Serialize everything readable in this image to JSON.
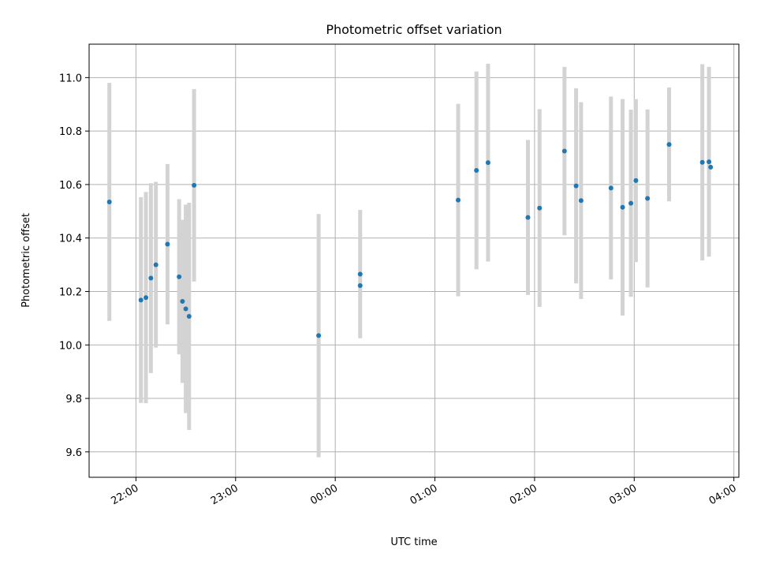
{
  "chart_data": {
    "type": "scatter",
    "title": "Photometric offset variation",
    "xlabel": "UTC time",
    "ylabel": "Photometric offset",
    "x_tick_labels": [
      "22:00",
      "23:00",
      "00:00",
      "01:00",
      "02:00",
      "03:00",
      "04:00"
    ],
    "x_tick_hours": [
      22,
      23,
      24,
      25,
      26,
      27,
      28
    ],
    "y_ticks": [
      9.6,
      9.8,
      10.0,
      10.2,
      10.4,
      10.6,
      10.8,
      11.0
    ],
    "xlim_hours": [
      21.53,
      28.05
    ],
    "ylim": [
      9.505,
      11.125
    ],
    "grid": true,
    "point_color": "#1f77b4",
    "errorbar_color": "#d3d3d3",
    "points": [
      {
        "t": "21:44",
        "y": 10.535,
        "err": 0.445
      },
      {
        "t": "22:03",
        "y": 10.168,
        "err": 0.385
      },
      {
        "t": "22:06",
        "y": 10.177,
        "err": 0.395
      },
      {
        "t": "22:09",
        "y": 10.25,
        "err": 0.355
      },
      {
        "t": "22:12",
        "y": 10.3,
        "err": 0.31
      },
      {
        "t": "22:19",
        "y": 10.377,
        "err": 0.3
      },
      {
        "t": "22:26",
        "y": 10.255,
        "err": 0.29
      },
      {
        "t": "22:28",
        "y": 10.163,
        "err": 0.305
      },
      {
        "t": "22:30",
        "y": 10.135,
        "err": 0.39
      },
      {
        "t": "22:32",
        "y": 10.107,
        "err": 0.425
      },
      {
        "t": "22:35",
        "y": 10.597,
        "err": 0.36
      },
      {
        "t": "23:50",
        "y": 10.035,
        "err": 0.455
      },
      {
        "t": "00:15",
        "y": 10.265,
        "err": 0.24
      },
      {
        "t": "00:15",
        "y": 10.222,
        "err": 0.0
      },
      {
        "t": "01:14",
        "y": 10.542,
        "err": 0.36
      },
      {
        "t": "01:25",
        "y": 10.653,
        "err": 0.37
      },
      {
        "t": "01:32",
        "y": 10.682,
        "err": 0.37
      },
      {
        "t": "01:56",
        "y": 10.477,
        "err": 0.29
      },
      {
        "t": "02:03",
        "y": 10.512,
        "err": 0.37
      },
      {
        "t": "02:18",
        "y": 10.725,
        "err": 0.315
      },
      {
        "t": "02:25",
        "y": 10.595,
        "err": 0.365
      },
      {
        "t": "02:28",
        "y": 10.54,
        "err": 0.368
      },
      {
        "t": "02:46",
        "y": 10.587,
        "err": 0.342
      },
      {
        "t": "02:53",
        "y": 10.515,
        "err": 0.405
      },
      {
        "t": "02:58",
        "y": 10.53,
        "err": 0.35
      },
      {
        "t": "03:01",
        "y": 10.615,
        "err": 0.305
      },
      {
        "t": "03:08",
        "y": 10.548,
        "err": 0.333
      },
      {
        "t": "03:21",
        "y": 10.75,
        "err": 0.213
      },
      {
        "t": "03:41",
        "y": 10.683,
        "err": 0.367
      },
      {
        "t": "03:45",
        "y": 10.685,
        "err": 0.355
      },
      {
        "t": "03:46",
        "y": 10.665,
        "err": 0.0
      }
    ]
  }
}
